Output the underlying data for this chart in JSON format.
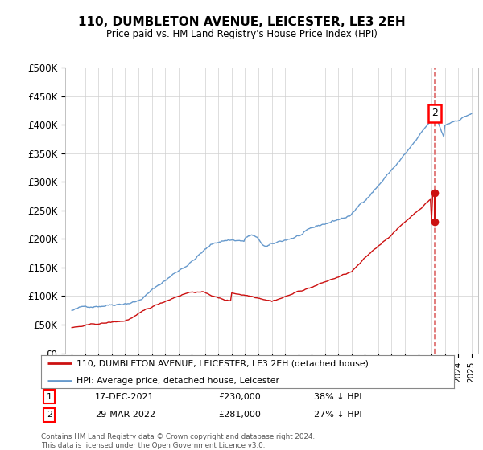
{
  "title": "110, DUMBLETON AVENUE, LEICESTER, LE3 2EH",
  "subtitle": "Price paid vs. HM Land Registry's House Price Index (HPI)",
  "legend_line1": "110, DUMBLETON AVENUE, LEICESTER, LE3 2EH (detached house)",
  "legend_line2": "HPI: Average price, detached house, Leicester",
  "transaction1_date": "17-DEC-2021",
  "transaction1_price": "£230,000",
  "transaction1_pct": "38% ↓ HPI",
  "transaction2_date": "29-MAR-2022",
  "transaction2_price": "£281,000",
  "transaction2_pct": "27% ↓ HPI",
  "footnote": "Contains HM Land Registry data © Crown copyright and database right 2024.\nThis data is licensed under the Open Government Licence v3.0.",
  "hpi_color": "#6699cc",
  "price_color": "#cc1111",
  "dashed_color": "#dd6666",
  "ylim_min": 0,
  "ylim_max": 500000,
  "yticks": [
    0,
    50000,
    100000,
    150000,
    200000,
    250000,
    300000,
    350000,
    400000,
    450000,
    500000
  ],
  "ytick_labels": [
    "£0",
    "£50K",
    "£100K",
    "£150K",
    "£200K",
    "£250K",
    "£300K",
    "£350K",
    "£400K",
    "£450K",
    "£500K"
  ],
  "t1_year": 2021.96,
  "t2_year": 2022.24,
  "t1_price": 230000,
  "t2_price": 281000
}
